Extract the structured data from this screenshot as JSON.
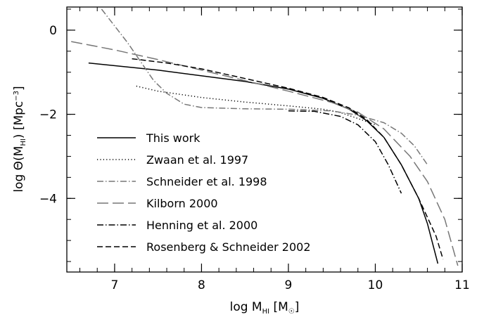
{
  "chart_data": {
    "type": "line",
    "xlabel": {
      "main": "log M",
      "sub": "HI",
      "unit_open": " [M",
      "unit_sub": "☉",
      "unit_close": "]"
    },
    "ylabel": {
      "main": "log Θ(M",
      "sub": "HI",
      "unit": ") [Mpc",
      "sup": "−3",
      "close": "]"
    },
    "xlim": [
      6.45,
      11.0
    ],
    "ylim": [
      -5.75,
      0.55
    ],
    "xticks": {
      "major": [
        7,
        8,
        9,
        10,
        11
      ],
      "major_labels": [
        "7",
        "8",
        "9",
        "10",
        "11"
      ],
      "minor_step": 0.2
    },
    "yticks": {
      "major": [
        0,
        -2,
        -4
      ],
      "major_labels": [
        "0",
        "−2",
        "−4"
      ],
      "minor_step": 0.5
    },
    "grid": false,
    "legend_position": "left",
    "series": [
      {
        "name": "This work",
        "style": "solid",
        "color": "#000000",
        "x": [
          6.7,
          7.5,
          8.5,
          9.0,
          9.4,
          9.7,
          9.9,
          10.1,
          10.3,
          10.5,
          10.6,
          10.72
        ],
        "y": [
          -0.78,
          -0.95,
          -1.22,
          -1.4,
          -1.62,
          -1.88,
          -2.15,
          -2.55,
          -3.2,
          -4.0,
          -4.6,
          -5.55
        ]
      },
      {
        "name": "Zwaan et al. 1997",
        "style": "dotted",
        "color": "#000000",
        "x": [
          7.25,
          7.5,
          8.0,
          8.5,
          9.0,
          9.4,
          9.6,
          9.8,
          10.0
        ],
        "y": [
          -1.33,
          -1.45,
          -1.6,
          -1.71,
          -1.8,
          -1.88,
          -1.96,
          -2.1,
          -2.25
        ]
      },
      {
        "name": "Schneider et al. 1998",
        "style": "dashdot",
        "color": "#777777",
        "x": [
          6.85,
          7.0,
          7.15,
          7.3,
          7.45,
          7.6,
          7.8,
          8.0,
          8.5,
          9.0,
          9.5,
          9.8,
          10.1,
          10.3,
          10.45,
          10.6
        ],
        "y": [
          0.5,
          0.1,
          -0.3,
          -0.75,
          -1.2,
          -1.5,
          -1.76,
          -1.84,
          -1.87,
          -1.88,
          -1.92,
          -2.02,
          -2.2,
          -2.45,
          -2.75,
          -3.2
        ]
      },
      {
        "name": "Kilborn 2000",
        "style": "longdash",
        "color": "#777777",
        "x": [
          6.5,
          7.0,
          7.5,
          8.0,
          8.5,
          9.0,
          9.5,
          9.8,
          10.1,
          10.4,
          10.6,
          10.8,
          10.95
        ],
        "y": [
          -0.27,
          -0.47,
          -0.7,
          -0.95,
          -1.2,
          -1.45,
          -1.72,
          -1.95,
          -2.35,
          -3.0,
          -3.6,
          -4.5,
          -5.6
        ]
      },
      {
        "name": "Henning et al. 2000",
        "style": "dashdot",
        "color": "#000000",
        "x": [
          9.0,
          9.3,
          9.6,
          9.8,
          10.0,
          10.15,
          10.3
        ],
        "y": [
          -1.92,
          -1.93,
          -2.05,
          -2.25,
          -2.65,
          -3.2,
          -3.88
        ]
      },
      {
        "name": "Rosenberg & Schneider 2002",
        "style": "dashed",
        "color": "#000000",
        "x": [
          7.2,
          7.6,
          8.0,
          8.5,
          9.0,
          9.4,
          9.7,
          9.9,
          10.1,
          10.3,
          10.5,
          10.7,
          10.78
        ],
        "y": [
          -0.68,
          -0.78,
          -0.92,
          -1.15,
          -1.38,
          -1.6,
          -1.85,
          -2.12,
          -2.55,
          -3.2,
          -4.0,
          -4.9,
          -5.45
        ]
      }
    ],
    "dashes": {
      "solid": "",
      "dotted": "1.2 3.2",
      "dashdot": "9 3 1.5 3",
      "longdash": "16 6",
      "dashed": "8 4"
    }
  }
}
